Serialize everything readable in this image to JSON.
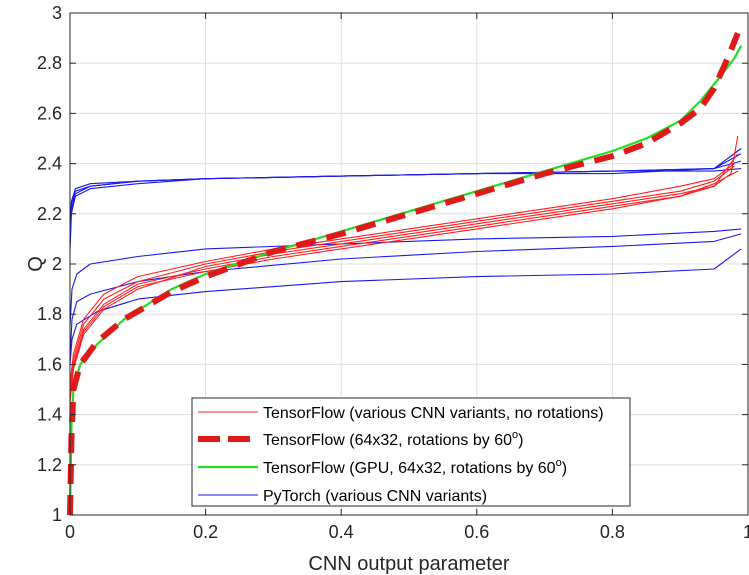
{
  "chart_data": {
    "type": "line",
    "title": "",
    "xlabel": "CNN output parameter",
    "ylabel": "Q",
    "xlim": [
      0,
      1
    ],
    "ylim": [
      1,
      3
    ],
    "x_ticks": [
      "0",
      "0.2",
      "0.4",
      "0.6",
      "0.8",
      "1"
    ],
    "y_ticks": [
      "1",
      "1.2",
      "1.4",
      "1.6",
      "1.8",
      "2",
      "2.2",
      "2.4",
      "2.6",
      "2.8",
      "3"
    ],
    "grid": true,
    "legend_position": "bottom-right",
    "legend": [
      {
        "label": "TensorFlow (various CNN variants, no rotations)",
        "color": "#ff2020",
        "style": "thin-solid"
      },
      {
        "label": "TensorFlow (64x32, rotations by 60",
        "superscript": "o",
        "suffix": ")",
        "color": "#e01a1a",
        "style": "thick-dashed"
      },
      {
        "label": "TensorFlow (GPU, 64x32, rotations by 60",
        "superscript": "o",
        "suffix": ")",
        "color": "#22dd22",
        "style": "solid"
      },
      {
        "label": "PyTorch (various CNN variants)",
        "color": "#1a1aee",
        "style": "thin-solid"
      }
    ],
    "series": [
      {
        "group": 0,
        "color": "#ff2020",
        "width": 1.1,
        "dash": "",
        "points": [
          [
            0,
            1.45
          ],
          [
            0.005,
            1.58
          ],
          [
            0.02,
            1.72
          ],
          [
            0.05,
            1.82
          ],
          [
            0.1,
            1.9
          ],
          [
            0.2,
            1.99
          ],
          [
            0.3,
            2.04
          ],
          [
            0.4,
            2.08
          ],
          [
            0.5,
            2.12
          ],
          [
            0.6,
            2.16
          ],
          [
            0.7,
            2.2
          ],
          [
            0.8,
            2.24
          ],
          [
            0.9,
            2.28
          ],
          [
            0.95,
            2.31
          ],
          [
            0.975,
            2.36
          ],
          [
            0.985,
            2.51
          ]
        ]
      },
      {
        "group": 0,
        "color": "#ff2020",
        "width": 1.1,
        "dash": "",
        "points": [
          [
            0,
            1.5
          ],
          [
            0.005,
            1.62
          ],
          [
            0.02,
            1.76
          ],
          [
            0.05,
            1.86
          ],
          [
            0.1,
            1.93
          ],
          [
            0.2,
            2.0
          ],
          [
            0.3,
            2.05
          ],
          [
            0.4,
            2.09
          ],
          [
            0.5,
            2.13
          ],
          [
            0.6,
            2.17
          ],
          [
            0.7,
            2.21
          ],
          [
            0.8,
            2.25
          ],
          [
            0.9,
            2.29
          ],
          [
            0.95,
            2.33
          ],
          [
            0.98,
            2.39
          ]
        ]
      },
      {
        "group": 0,
        "color": "#ff2020",
        "width": 1.1,
        "dash": "",
        "points": [
          [
            0,
            1.48
          ],
          [
            0.005,
            1.6
          ],
          [
            0.02,
            1.74
          ],
          [
            0.05,
            1.84
          ],
          [
            0.1,
            1.92
          ],
          [
            0.2,
            1.98
          ],
          [
            0.3,
            2.03
          ],
          [
            0.4,
            2.07
          ],
          [
            0.5,
            2.11
          ],
          [
            0.6,
            2.15
          ],
          [
            0.7,
            2.19
          ],
          [
            0.8,
            2.23
          ],
          [
            0.9,
            2.27
          ],
          [
            0.95,
            2.31
          ],
          [
            0.985,
            2.44
          ]
        ]
      },
      {
        "group": 0,
        "color": "#ff2020",
        "width": 1.1,
        "dash": "",
        "points": [
          [
            0,
            1.52
          ],
          [
            0.005,
            1.64
          ],
          [
            0.02,
            1.78
          ],
          [
            0.05,
            1.88
          ],
          [
            0.1,
            1.95
          ],
          [
            0.2,
            2.01
          ],
          [
            0.3,
            2.06
          ],
          [
            0.4,
            2.1
          ],
          [
            0.5,
            2.14
          ],
          [
            0.6,
            2.18
          ],
          [
            0.7,
            2.22
          ],
          [
            0.8,
            2.26
          ],
          [
            0.9,
            2.31
          ],
          [
            0.95,
            2.34
          ],
          [
            0.98,
            2.4
          ]
        ]
      },
      {
        "group": 0,
        "color": "#ff2020",
        "width": 1.1,
        "dash": "",
        "points": [
          [
            0,
            1.46
          ],
          [
            0.005,
            1.59
          ],
          [
            0.02,
            1.73
          ],
          [
            0.05,
            1.83
          ],
          [
            0.1,
            1.91
          ],
          [
            0.2,
            1.97
          ],
          [
            0.3,
            2.02
          ],
          [
            0.4,
            2.06
          ],
          [
            0.5,
            2.1
          ],
          [
            0.6,
            2.14
          ],
          [
            0.7,
            2.18
          ],
          [
            0.8,
            2.22
          ],
          [
            0.9,
            2.27
          ],
          [
            0.95,
            2.32
          ],
          [
            0.985,
            2.37
          ]
        ]
      },
      {
        "group": 1,
        "color": "#e01a1a",
        "width": 6,
        "dash": "20,11",
        "points": [
          [
            0,
            1.0
          ],
          [
            0.002,
            1.3
          ],
          [
            0.005,
            1.5
          ],
          [
            0.015,
            1.6
          ],
          [
            0.04,
            1.69
          ],
          [
            0.08,
            1.78
          ],
          [
            0.15,
            1.89
          ],
          [
            0.2,
            1.95
          ],
          [
            0.3,
            2.05
          ],
          [
            0.4,
            2.12
          ],
          [
            0.5,
            2.2
          ],
          [
            0.6,
            2.28
          ],
          [
            0.7,
            2.36
          ],
          [
            0.8,
            2.43
          ],
          [
            0.85,
            2.48
          ],
          [
            0.9,
            2.56
          ],
          [
            0.93,
            2.62
          ],
          [
            0.95,
            2.7
          ],
          [
            0.97,
            2.82
          ],
          [
            0.985,
            2.92
          ]
        ]
      },
      {
        "group": 2,
        "color": "#22dd22",
        "width": 2.2,
        "dash": "",
        "points": [
          [
            0,
            1.0
          ],
          [
            0.002,
            1.35
          ],
          [
            0.005,
            1.5
          ],
          [
            0.015,
            1.6
          ],
          [
            0.04,
            1.68
          ],
          [
            0.08,
            1.78
          ],
          [
            0.15,
            1.9
          ],
          [
            0.2,
            1.96
          ],
          [
            0.3,
            2.05
          ],
          [
            0.4,
            2.13
          ],
          [
            0.5,
            2.21
          ],
          [
            0.6,
            2.29
          ],
          [
            0.7,
            2.37
          ],
          [
            0.8,
            2.45
          ],
          [
            0.85,
            2.5
          ],
          [
            0.9,
            2.57
          ],
          [
            0.93,
            2.65
          ],
          [
            0.96,
            2.75
          ],
          [
            0.98,
            2.82
          ],
          [
            0.99,
            2.87
          ]
        ]
      },
      {
        "group": 3,
        "color": "#1a1aee",
        "width": 1.1,
        "dash": "",
        "points": [
          [
            0,
            2.05
          ],
          [
            0.002,
            2.2
          ],
          [
            0.008,
            2.27
          ],
          [
            0.03,
            2.3
          ],
          [
            0.1,
            2.32
          ],
          [
            0.2,
            2.34
          ],
          [
            0.4,
            2.35
          ],
          [
            0.6,
            2.36
          ],
          [
            0.8,
            2.36
          ],
          [
            0.95,
            2.38
          ],
          [
            0.99,
            2.41
          ]
        ]
      },
      {
        "group": 3,
        "color": "#1a1aee",
        "width": 1.1,
        "dash": "",
        "points": [
          [
            0,
            2.08
          ],
          [
            0.002,
            2.22
          ],
          [
            0.008,
            2.28
          ],
          [
            0.03,
            2.31
          ],
          [
            0.1,
            2.33
          ],
          [
            0.2,
            2.34
          ],
          [
            0.4,
            2.35
          ],
          [
            0.6,
            2.36
          ],
          [
            0.8,
            2.37
          ],
          [
            0.95,
            2.38
          ],
          [
            0.99,
            2.44
          ]
        ]
      },
      {
        "group": 3,
        "color": "#1a1aee",
        "width": 1.1,
        "dash": "",
        "points": [
          [
            0,
            2.1
          ],
          [
            0.002,
            2.24
          ],
          [
            0.008,
            2.29
          ],
          [
            0.03,
            2.31
          ],
          [
            0.1,
            2.33
          ],
          [
            0.2,
            2.34
          ],
          [
            0.4,
            2.35
          ],
          [
            0.6,
            2.36
          ],
          [
            0.8,
            2.37
          ],
          [
            0.95,
            2.38
          ],
          [
            0.99,
            2.46
          ]
        ]
      },
      {
        "group": 3,
        "color": "#1a1aee",
        "width": 1.1,
        "dash": "",
        "points": [
          [
            0,
            2.12
          ],
          [
            0.002,
            2.25
          ],
          [
            0.008,
            2.3
          ],
          [
            0.03,
            2.32
          ],
          [
            0.1,
            2.33
          ],
          [
            0.2,
            2.34
          ],
          [
            0.4,
            2.35
          ],
          [
            0.6,
            2.36
          ],
          [
            0.8,
            2.37
          ],
          [
            0.95,
            2.37
          ],
          [
            0.99,
            2.38
          ]
        ]
      },
      {
        "group": 3,
        "color": "#1a1aee",
        "width": 1.1,
        "dash": "",
        "points": [
          [
            0,
            1.75
          ],
          [
            0.003,
            1.9
          ],
          [
            0.01,
            1.96
          ],
          [
            0.03,
            2.0
          ],
          [
            0.1,
            2.03
          ],
          [
            0.2,
            2.06
          ],
          [
            0.4,
            2.08
          ],
          [
            0.6,
            2.1
          ],
          [
            0.8,
            2.11
          ],
          [
            0.95,
            2.13
          ],
          [
            0.99,
            2.14
          ]
        ]
      },
      {
        "group": 3,
        "color": "#1a1aee",
        "width": 1.1,
        "dash": "",
        "points": [
          [
            0,
            1.62
          ],
          [
            0.003,
            1.78
          ],
          [
            0.01,
            1.85
          ],
          [
            0.03,
            1.88
          ],
          [
            0.1,
            1.93
          ],
          [
            0.2,
            1.97
          ],
          [
            0.4,
            2.02
          ],
          [
            0.6,
            2.05
          ],
          [
            0.8,
            2.07
          ],
          [
            0.95,
            2.09
          ],
          [
            0.99,
            2.12
          ]
        ]
      },
      {
        "group": 3,
        "color": "#1a1aee",
        "width": 1.1,
        "dash": "",
        "points": [
          [
            0,
            1.6
          ],
          [
            0.003,
            1.7
          ],
          [
            0.01,
            1.76
          ],
          [
            0.04,
            1.81
          ],
          [
            0.1,
            1.86
          ],
          [
            0.2,
            1.89
          ],
          [
            0.4,
            1.93
          ],
          [
            0.6,
            1.95
          ],
          [
            0.8,
            1.96
          ],
          [
            0.95,
            1.98
          ],
          [
            0.99,
            2.06
          ]
        ]
      }
    ]
  }
}
